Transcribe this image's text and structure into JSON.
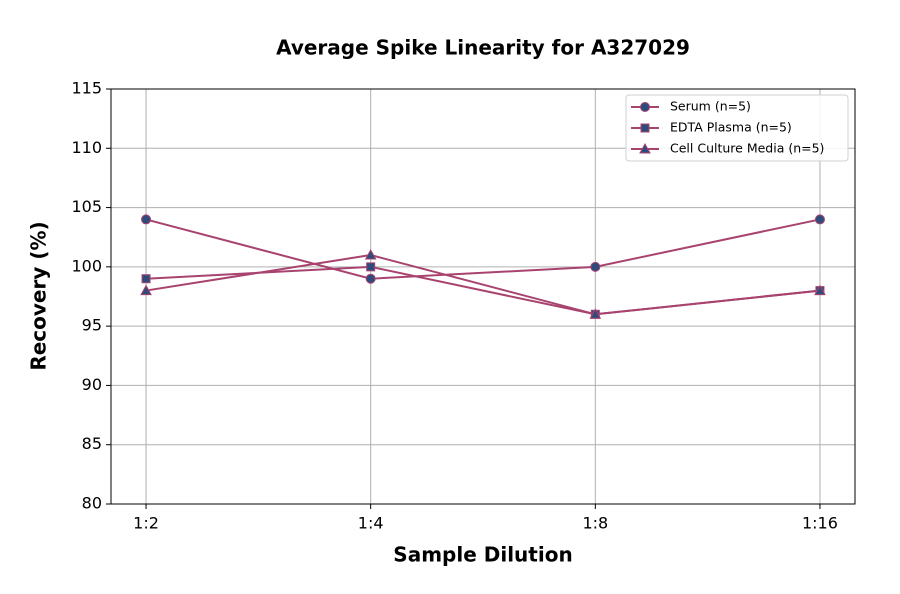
{
  "chart_data": {
    "type": "line",
    "title": "Average Spike Linearity for A327029",
    "x_label": "Sample Dilution",
    "y_label": "Recovery (%)",
    "categories": [
      "1:2",
      "1:4",
      "1:8",
      "1:16"
    ],
    "series": [
      {
        "name": "Serum (n=5)",
        "color": "#a8436f",
        "marker": "circle",
        "marker_color": "#2f4b7c",
        "values": [
          104,
          99,
          100,
          104
        ]
      },
      {
        "name": "EDTA Plasma (n=5)",
        "color": "#a8436f",
        "marker": "square",
        "marker_color": "#2f4b7c",
        "values": [
          99,
          100,
          96,
          98
        ]
      },
      {
        "name": "Cell Culture Media (n=5)",
        "color": "#a8436f",
        "marker": "triangle",
        "marker_color": "#2f4b7c",
        "values": [
          98,
          101,
          96,
          98
        ]
      }
    ],
    "ylim": [
      80,
      115
    ],
    "yticks": [
      80,
      85,
      90,
      95,
      100,
      105,
      110,
      115
    ],
    "grid": true,
    "legend": "upper right"
  }
}
